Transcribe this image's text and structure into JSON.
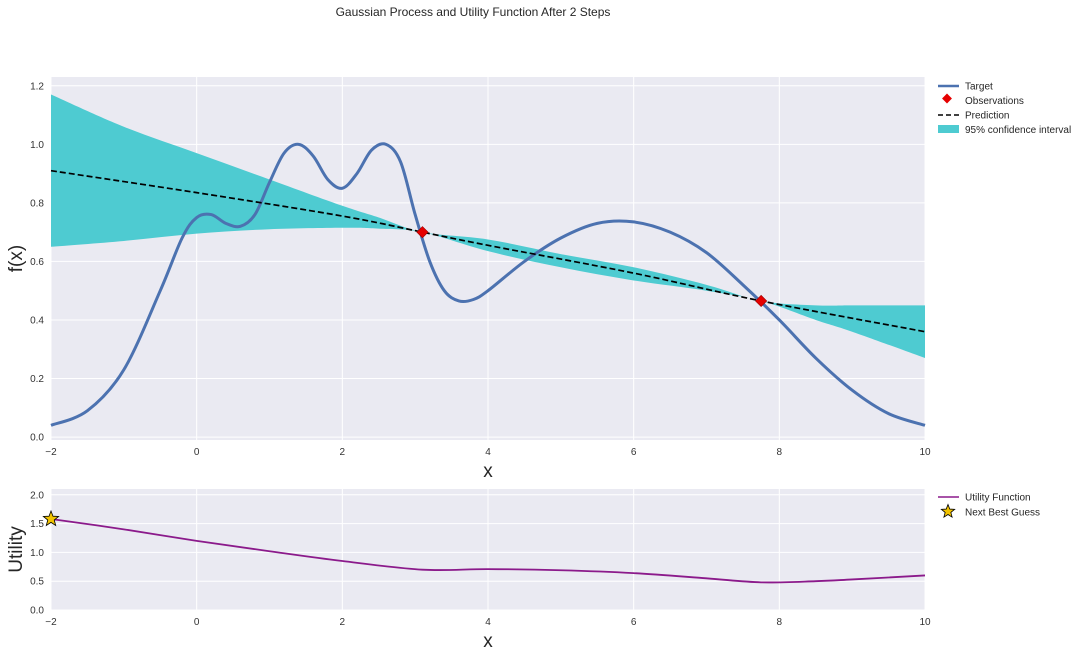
{
  "figure": {
    "title": "Gaussian Process and Utility Function After 2 Steps"
  },
  "colors": {
    "background": "#eaeaf2",
    "grid": "#ffffff",
    "target": "#4c72b0",
    "observation": "#e50000",
    "prediction": "#000000",
    "confidence": "#4ecbd1",
    "utility": "#8b1a8b",
    "star": "#f2c300"
  },
  "chart_data": [
    {
      "type": "line",
      "xlabel": "x",
      "ylabel": "f(x)",
      "xlim": [
        -2,
        10
      ],
      "ylim": [
        -0.01,
        1.23
      ],
      "xticks": [
        -2,
        0,
        2,
        4,
        6,
        8,
        10
      ],
      "yticks": [
        0.0,
        0.2,
        0.4,
        0.6,
        0.8,
        1.0,
        1.2
      ],
      "grid": true,
      "legend_position": "outside-right-top",
      "legend": [
        "Target",
        "Observations",
        "Prediction",
        "95% confidence interval"
      ],
      "target": {
        "name": "Target",
        "x": [
          -2,
          -1.5,
          -1,
          -0.5,
          -0.2,
          0,
          0.2,
          0.4,
          0.6,
          0.8,
          1.0,
          1.2,
          1.4,
          1.6,
          1.8,
          2.0,
          2.2,
          2.4,
          2.6,
          2.8,
          3.0,
          3.2,
          3.4,
          3.6,
          3.8,
          4.0,
          4.5,
          5.0,
          5.5,
          6.0,
          6.5,
          7.0,
          7.5,
          8.0,
          8.5,
          9.0,
          9.5,
          10
        ],
        "y": [
          0.04,
          0.09,
          0.23,
          0.5,
          0.68,
          0.75,
          0.76,
          0.73,
          0.72,
          0.76,
          0.87,
          0.97,
          1.0,
          0.96,
          0.88,
          0.85,
          0.9,
          0.98,
          1.0,
          0.94,
          0.76,
          0.6,
          0.5,
          0.465,
          0.47,
          0.5,
          0.6,
          0.68,
          0.73,
          0.735,
          0.7,
          0.63,
          0.52,
          0.4,
          0.27,
          0.16,
          0.08,
          0.04
        ]
      },
      "observations": {
        "name": "Observations",
        "x": [
          3.1,
          7.75
        ],
        "y": [
          0.7,
          0.465
        ]
      },
      "prediction": {
        "name": "Prediction",
        "x": [
          -2,
          0,
          2,
          3.1,
          4,
          6,
          7.75,
          10
        ],
        "y": [
          0.91,
          0.835,
          0.755,
          0.7,
          0.655,
          0.56,
          0.465,
          0.36
        ]
      },
      "confidence_interval": {
        "name": "95% confidence interval",
        "x": [
          -2,
          -1,
          0,
          1,
          2,
          2.5,
          3.1,
          4,
          5,
          6,
          7,
          7.75,
          8.5,
          9,
          10
        ],
        "upper": [
          1.17,
          1.06,
          0.97,
          0.88,
          0.79,
          0.75,
          0.7,
          0.675,
          0.625,
          0.58,
          0.52,
          0.465,
          0.45,
          0.45,
          0.45
        ],
        "lower": [
          0.65,
          0.67,
          0.695,
          0.71,
          0.715,
          0.712,
          0.7,
          0.635,
          0.58,
          0.535,
          0.5,
          0.465,
          0.4,
          0.36,
          0.27
        ]
      }
    },
    {
      "type": "line",
      "xlabel": "x",
      "ylabel": "Utility",
      "xlim": [
        -2,
        10
      ],
      "ylim": [
        0.0,
        2.1
      ],
      "xticks": [
        -2,
        0,
        2,
        4,
        6,
        8,
        10
      ],
      "yticks": [
        0.0,
        0.5,
        1.0,
        1.5,
        2.0
      ],
      "grid": true,
      "legend_position": "outside-right-top",
      "legend": [
        "Utility Function",
        "Next Best Guess"
      ],
      "utility": {
        "name": "Utility Function",
        "x": [
          -2,
          -1,
          0,
          1,
          2,
          3.1,
          4,
          5,
          6,
          7,
          7.75,
          8.5,
          9,
          10
        ],
        "y": [
          1.58,
          1.4,
          1.2,
          1.02,
          0.85,
          0.7,
          0.71,
          0.69,
          0.64,
          0.55,
          0.48,
          0.5,
          0.53,
          0.6
        ]
      },
      "next_best_guess": {
        "name": "Next Best Guess",
        "x": -2,
        "y": 1.58
      }
    }
  ]
}
